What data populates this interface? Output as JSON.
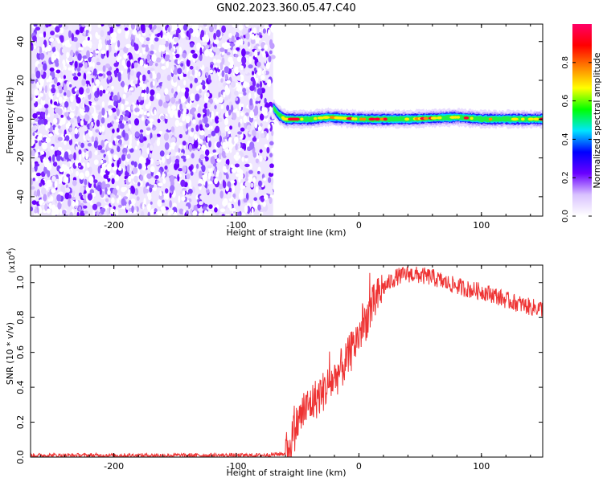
{
  "figure": {
    "title": "GN02.2023.360.05.47.C40"
  },
  "chart_data": [
    {
      "type": "heatmap",
      "xlabel": "Height of straight line (km)",
      "ylabel": "Frequency (Hz)",
      "xlim": [
        -268,
        150
      ],
      "ylim": [
        -50,
        49
      ],
      "xticks": [
        -200,
        -100,
        0,
        100
      ],
      "xtick_labels": [
        "-200",
        "-100",
        "0",
        "100"
      ],
      "yticks": [
        -40,
        -20,
        0,
        20,
        40
      ],
      "ytick_labels": [
        "-40",
        "-20",
        "0",
        "20",
        "40"
      ],
      "noise_region_x": [
        -268,
        -70
      ],
      "signal_band": {
        "x_start": -70,
        "x_end": 150,
        "center_frequency": [
          {
            "x": -70,
            "y": 6
          },
          {
            "x": -65,
            "y": 2
          },
          {
            "x": -60,
            "y": 0
          },
          {
            "x": -40,
            "y": 0
          },
          {
            "x": -25,
            "y": 1
          },
          {
            "x": 0,
            "y": 0
          },
          {
            "x": 40,
            "y": 0
          },
          {
            "x": 80,
            "y": 1
          },
          {
            "x": 100,
            "y": 0
          },
          {
            "x": 150,
            "y": 0
          }
        ]
      },
      "colorbar": {
        "label": "Normalized spectral amplitude",
        "range": [
          0,
          1
        ],
        "ticks": [
          0,
          0.2,
          0.4,
          0.6,
          0.8
        ],
        "tick_labels": [
          "0.0",
          "0.2",
          "0.4",
          "0.6",
          "0.8"
        ],
        "colormap": [
          "#ffffff",
          "#d9c2ff",
          "#6a00ff",
          "#0000ff",
          "#00e5ff",
          "#00ff00",
          "#ffff00",
          "#ff8000",
          "#ff0000",
          "#ff0066"
        ]
      }
    },
    {
      "type": "line",
      "xlabel": "Height of straight line (km)",
      "ylabel": "SNR (10 * v/v)",
      "yscale_label": "(x10",
      "yscale_exp": "4",
      "yscale_close": ")",
      "xlim": [
        -268,
        150
      ],
      "ylim": [
        0,
        1.1
      ],
      "xticks": [
        -200,
        -100,
        0,
        100
      ],
      "xtick_labels": [
        "-200",
        "-100",
        "0",
        "100"
      ],
      "yticks": [
        0,
        0.2,
        0.4,
        0.6,
        0.8,
        1.0
      ],
      "ytick_labels": [
        "0.0",
        "0.2",
        "0.4",
        "0.6",
        "0.8",
        "1.0"
      ],
      "series": [
        {
          "color": "#ee3333",
          "x": [
            -268,
            -150,
            -80,
            -60,
            -55,
            -50,
            -45,
            -40,
            -30,
            -20,
            -10,
            0,
            10,
            20,
            30,
            40,
            50,
            60,
            70,
            80,
            90,
            100,
            110,
            120,
            130,
            140,
            150
          ],
          "y": [
            0.01,
            0.01,
            0.01,
            0.02,
            0.1,
            0.2,
            0.26,
            0.3,
            0.37,
            0.45,
            0.55,
            0.7,
            0.85,
            0.97,
            1.03,
            1.05,
            1.04,
            1.03,
            1.0,
            0.98,
            0.96,
            0.95,
            0.93,
            0.9,
            0.88,
            0.86,
            0.85
          ]
        }
      ]
    }
  ]
}
